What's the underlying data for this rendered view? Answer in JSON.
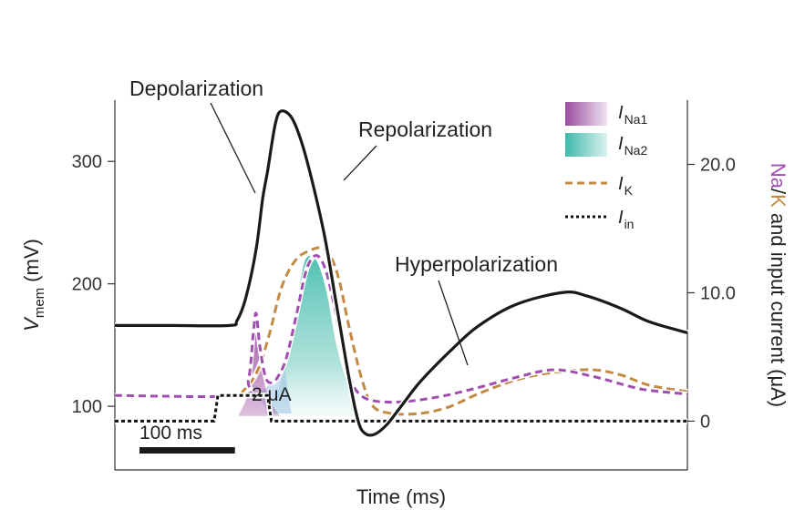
{
  "chart_data": {
    "type": "line",
    "xlabel": "Time (ms)",
    "ylabel_left": "V",
    "ylabel_left_sub": "mem",
    "ylabel_left_unit": "(mV)",
    "ylabel_right_na": "Na",
    "ylabel_right_sep": "/",
    "ylabel_right_k": "K",
    "ylabel_right_rest": " and input current (μA)",
    "left_ticks": [
      "100",
      "200",
      "300"
    ],
    "left_tick_values": [
      100,
      200,
      300
    ],
    "right_ticks": [
      "0",
      "10.0",
      "20.0"
    ],
    "right_tick_values": [
      0,
      10,
      20
    ],
    "ylim_left": [
      48,
      350
    ],
    "ylim_right": [
      -3.8,
      25.0
    ],
    "xlim": [
      0,
      600
    ],
    "scale_bar_label": "100 ms",
    "scale_bar_ms": 100,
    "pulse_label": "2 μA",
    "annotations": {
      "depolarization": "Depolarization",
      "repolarization": "Repolarization",
      "hyperpolarization": "Hyperpolarization"
    },
    "legend": {
      "na1": "Na1",
      "na2": "Na2",
      "k": "K",
      "in": "in",
      "symbol": "I"
    },
    "series": [
      {
        "key": "vmem",
        "axis": "left",
        "x": [
          0,
          60,
          120,
          128,
          137,
          148,
          155,
          160,
          168,
          174,
          185,
          196,
          208,
          220,
          232,
          245,
          255,
          262,
          272,
          285,
          300,
          320,
          350,
          380,
          420,
          470,
          495,
          530,
          560,
          600
        ],
        "y": [
          166,
          166,
          166,
          170,
          188,
          228,
          270,
          292,
          330,
          341,
          336,
          315,
          280,
          238,
          184,
          125,
          88,
          78,
          77,
          85,
          100,
          120,
          144,
          165,
          183,
          193,
          190,
          180,
          169,
          160
        ]
      },
      {
        "key": "ina1",
        "axis": "right",
        "x": [
          130,
          140,
          145,
          148,
          152,
          156,
          163,
          172
        ],
        "y": [
          0.5,
          2.4,
          6.8,
          8.4,
          5.6,
          3.2,
          1.5,
          0.5
        ]
      },
      {
        "key": "ina2",
        "axis": "right",
        "x": [
          160,
          178,
          188,
          196,
          202,
          212,
          222,
          232,
          242,
          250,
          256
        ],
        "y": [
          0.4,
          4.0,
          7.8,
          11.5,
          12.8,
          12.4,
          10.0,
          6.0,
          3.3,
          1.8,
          0.8
        ]
      },
      {
        "key": "ina_dashed",
        "axis": "right",
        "x": [
          0,
          130,
          140,
          145,
          148,
          152,
          158,
          165,
          172,
          180,
          190,
          200,
          208,
          215,
          222,
          230,
          238,
          246,
          255,
          270,
          300,
          340,
          380,
          420,
          460,
          500,
          540,
          560,
          600
        ],
        "y": [
          2.0,
          2.0,
          3.2,
          6.8,
          8.4,
          5.8,
          3.4,
          3.0,
          3.6,
          5.0,
          8.2,
          11.6,
          12.8,
          12.7,
          11.5,
          9.0,
          6.0,
          3.5,
          2.2,
          1.6,
          1.5,
          1.9,
          2.6,
          3.4,
          4.0,
          3.5,
          2.7,
          2.4,
          2.1
        ]
      },
      {
        "key": "ik",
        "axis": "right",
        "x": [
          0,
          120,
          135,
          150,
          162,
          175,
          190,
          205,
          215,
          225,
          235,
          245,
          258,
          270,
          290,
          320,
          350,
          380,
          420,
          460,
          500,
          530,
          560,
          600
        ],
        "y": [
          2.0,
          2.0,
          2.4,
          4.0,
          6.8,
          10.5,
          12.6,
          13.3,
          13.5,
          13.0,
          11.0,
          7.5,
          3.5,
          1.2,
          0.6,
          0.6,
          1.1,
          2.1,
          3.2,
          3.8,
          4.0,
          3.6,
          2.8,
          2.3
        ]
      },
      {
        "key": "iin",
        "axis": "right",
        "x": [
          0,
          104,
          108,
          160,
          164,
          600
        ],
        "y": [
          0,
          0,
          2.0,
          2.0,
          0,
          0
        ]
      }
    ],
    "colors": {
      "vmem": "#1a1a1a",
      "na1": "#9b4c9f",
      "na2": "#57c4b6",
      "na_line": "#a04fb0",
      "k": "#c38a43",
      "iin": "#111111",
      "na_label": "#a04fb0",
      "k_label": "#c38a43"
    },
    "grid": false
  }
}
